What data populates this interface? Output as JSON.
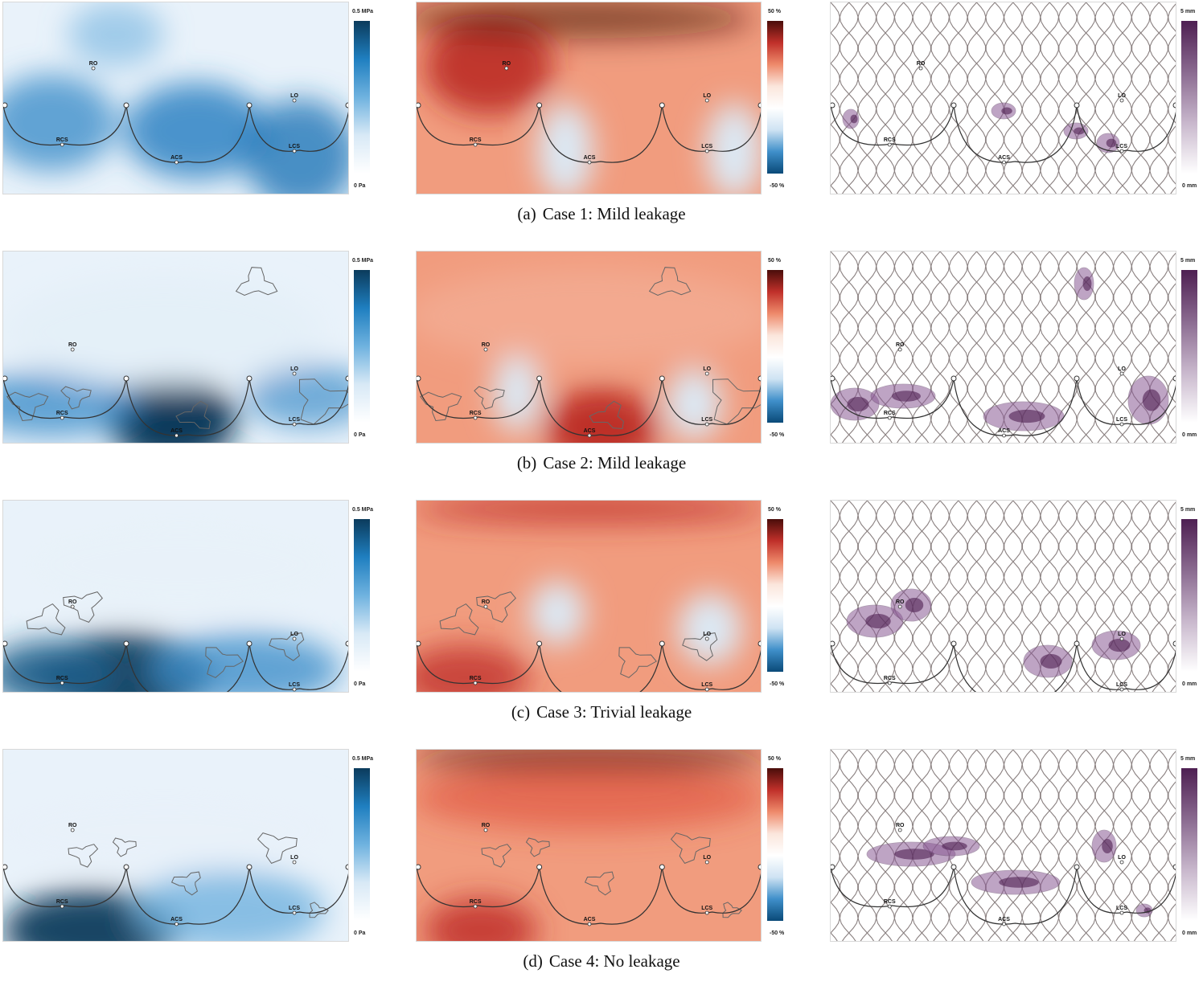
{
  "figure": {
    "colorbars": {
      "stress": {
        "max": "0.5 MPa",
        "min": "0 Pa",
        "gradient": [
          "#0b3b5c",
          "#1f7fc0",
          "#6fb2df",
          "#d8e9f6",
          "#ffffff"
        ]
      },
      "strain": {
        "max": "50 %",
        "min": "-50 %",
        "gradient": [
          "#4a0d0a",
          "#c0302a",
          "#ee8a6b",
          "#fbe6dc",
          "#ffffff",
          "#cfe3f3",
          "#3f8fca",
          "#0a4a78"
        ]
      },
      "gap": {
        "max": "5 mm",
        "min": "0 mm",
        "gradient": [
          "#4e1f52",
          "#8a6a90",
          "#c8b7cc",
          "#ffffff"
        ]
      }
    },
    "landmarks": [
      "RO",
      "LO",
      "RCS",
      "ACS",
      "LCS"
    ],
    "rows": [
      {
        "tag": "(a)",
        "text": "Case 1: Mild leakage"
      },
      {
        "tag": "(b)",
        "text": "Case 2: Mild leakage"
      },
      {
        "tag": "(c)",
        "text": "Case 3: Trivial leakage"
      },
      {
        "tag": "(d)",
        "text": "Case 4: No leakage"
      }
    ]
  }
}
